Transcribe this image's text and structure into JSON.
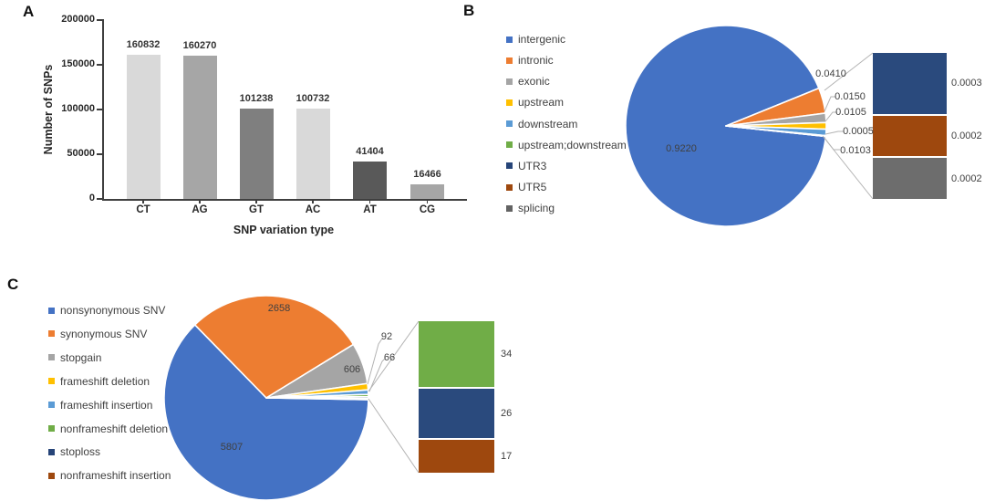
{
  "panels": {
    "a": {
      "label": "A"
    },
    "b": {
      "label": "B"
    },
    "c": {
      "label": "C"
    }
  },
  "chart_data": [
    {
      "type": "bar",
      "panel": "A",
      "title": "",
      "xlabel": "SNP variation type",
      "ylabel": "Number of SNPs",
      "categories": [
        "CT",
        "AG",
        "GT",
        "AC",
        "AT",
        "CG"
      ],
      "values": [
        160832,
        160270,
        101238,
        100732,
        41404,
        16466
      ],
      "value_labels": [
        "160832",
        "160270",
        "101238",
        "100732",
        "41404",
        "16466"
      ],
      "bar_colors": [
        "#d9d9d9",
        "#a6a6a6",
        "#7f7f7f",
        "#d9d9d9",
        "#595959",
        "#a6a6a6"
      ],
      "ylim": [
        0,
        200000
      ],
      "yticks": [
        0,
        50000,
        100000,
        150000,
        200000
      ],
      "grid": false,
      "axis_color": "#3f3f3f"
    },
    {
      "type": "pie",
      "panel": "B",
      "title": "",
      "legend_position": "left",
      "legend": [
        "intergenic",
        "intronic",
        "exonic",
        "upstream",
        "downstream",
        "upstream;downstream",
        "UTR3",
        "UTR5",
        "splicing"
      ],
      "colors": [
        "#4472c4",
        "#ed7d31",
        "#a5a5a5",
        "#ffc000",
        "#5b9bd5",
        "#70ad47",
        "#264478",
        "#9e480e",
        "#636363"
      ],
      "values": [
        0.922,
        0.041,
        0.015,
        0.0105,
        0.0103,
        0.0005,
        0.0003,
        0.0002,
        0.0002
      ],
      "value_labels": [
        "0.9220",
        "0.0410",
        "0.0150",
        "0.0105",
        "0.0103",
        "0.0005",
        "0.0003",
        "0.0002",
        "0.0002"
      ],
      "breakout": {
        "legend": [
          "UTR3",
          "UTR5",
          "splicing"
        ],
        "values": [
          0.0003,
          0.0002,
          0.0002
        ],
        "value_labels": [
          "0.0003",
          "0.0002",
          "0.0002"
        ],
        "colors": [
          "#2a4a7d",
          "#9e480e",
          "#6d6d6d"
        ]
      }
    },
    {
      "type": "pie",
      "panel": "C",
      "title": "",
      "legend_position": "left",
      "legend": [
        "nonsynonymous SNV",
        "synonymous SNV",
        "stopgain",
        "frameshift deletion",
        "frameshift insertion",
        "nonframeshift deletion",
        "stoploss",
        "nonframeshift insertion"
      ],
      "colors": [
        "#4472c4",
        "#ed7d31",
        "#a5a5a5",
        "#ffc000",
        "#5b9bd5",
        "#70ad47",
        "#264478",
        "#9e480e"
      ],
      "values": [
        5807,
        2658,
        606,
        92,
        66,
        34,
        26,
        17
      ],
      "value_labels": [
        "5807",
        "2658",
        "606",
        "92",
        "66",
        "34",
        "26",
        "17"
      ],
      "breakout": {
        "legend": [
          "nonframeshift deletion",
          "stoploss",
          "nonframeshift insertion"
        ],
        "values": [
          34,
          26,
          17
        ],
        "value_labels": [
          "34",
          "26",
          "17"
        ],
        "colors": [
          "#70ad47",
          "#2a4a7d",
          "#9e480e"
        ]
      }
    }
  ]
}
